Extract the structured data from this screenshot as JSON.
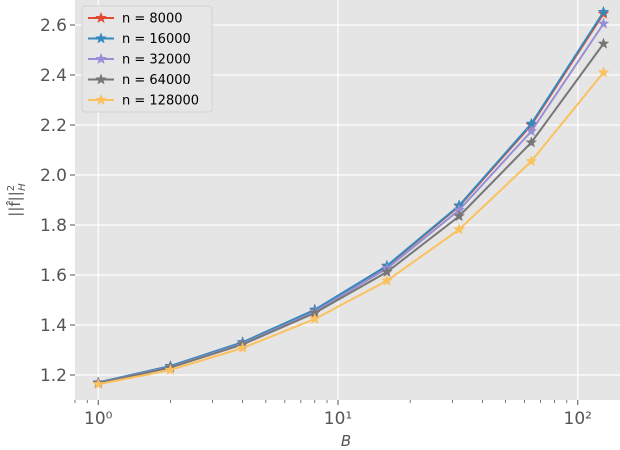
{
  "chart_data": {
    "type": "line",
    "title": "",
    "xlabel": "B",
    "ylabel": "||f̂||²_H",
    "xscale": "log",
    "x": [
      1,
      2,
      4,
      8,
      16,
      32,
      64,
      128
    ],
    "xlim": [
      0.8,
      150
    ],
    "ylim": [
      1.1,
      2.7
    ],
    "x_ticks": [
      1,
      10,
      100
    ],
    "x_tick_labels": [
      "10⁰",
      "10¹",
      "10²"
    ],
    "y_ticks": [
      1.2,
      1.4,
      1.6,
      1.8,
      2.0,
      2.2,
      2.4,
      2.6
    ],
    "y_tick_labels": [
      "1.2",
      "1.4",
      "1.6",
      "1.8",
      "2.0",
      "2.2",
      "2.4",
      "2.6"
    ],
    "grid": true,
    "legend_position": "top-left",
    "marker": "star",
    "series": [
      {
        "name": "n = 8000",
        "color": "#E24A33",
        "values": [
          1.17,
          1.235,
          1.33,
          1.46,
          1.635,
          1.875,
          2.2,
          2.645
        ]
      },
      {
        "name": "n = 16000",
        "color": "#348ABD",
        "values": [
          1.17,
          1.236,
          1.331,
          1.461,
          1.637,
          1.878,
          2.205,
          2.652
        ]
      },
      {
        "name": "n = 32000",
        "color": "#988ED5",
        "values": [
          1.168,
          1.232,
          1.325,
          1.453,
          1.626,
          1.86,
          2.175,
          2.605
        ]
      },
      {
        "name": "n = 64000",
        "color": "#777777",
        "values": [
          1.167,
          1.23,
          1.322,
          1.448,
          1.612,
          1.835,
          2.13,
          2.525
        ]
      },
      {
        "name": "n = 128000",
        "color": "#FBC15E",
        "values": [
          1.163,
          1.22,
          1.308,
          1.424,
          1.577,
          1.782,
          2.055,
          2.41
        ]
      }
    ]
  }
}
